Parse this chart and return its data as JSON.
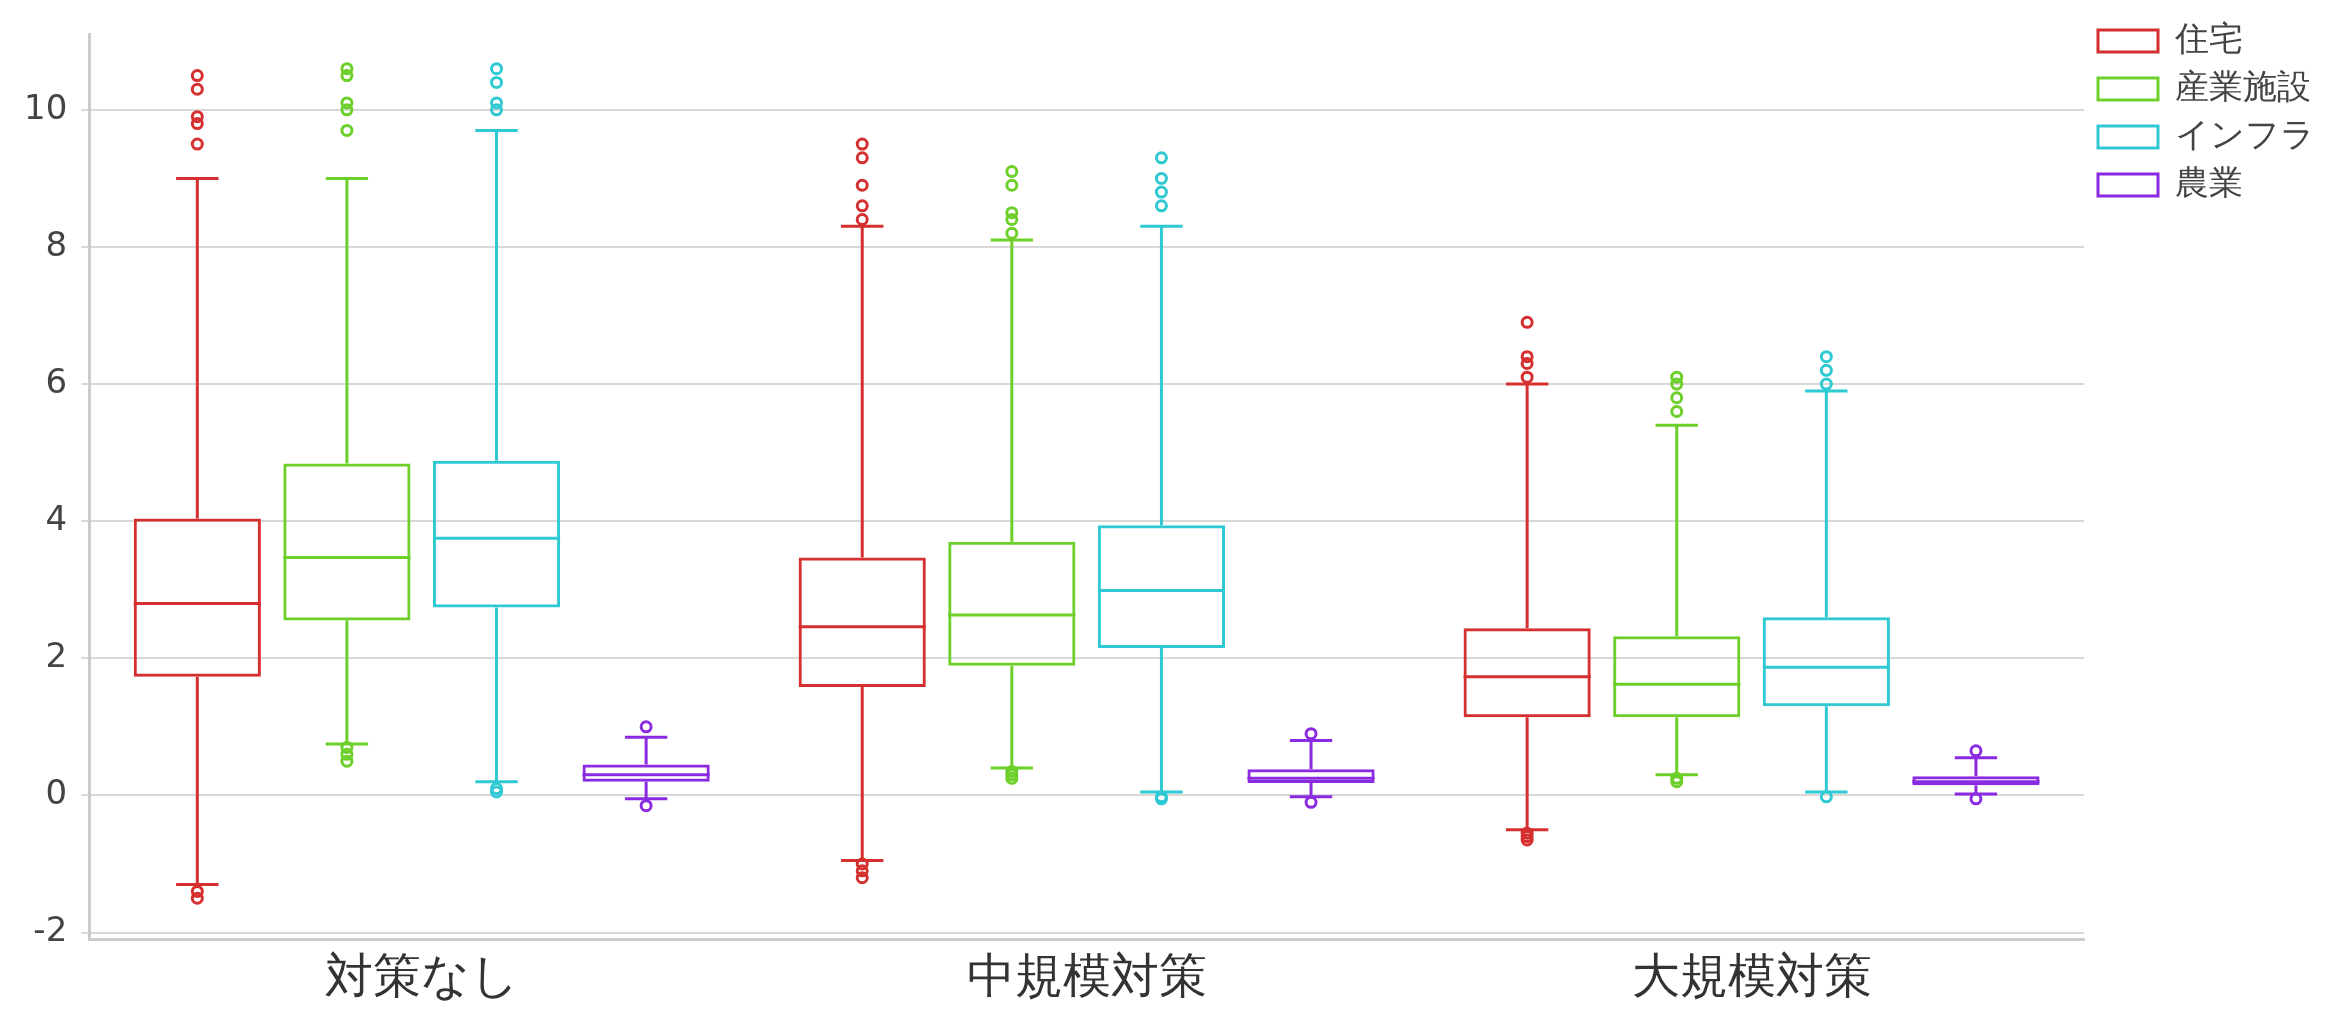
{
  "chart_data": {
    "type": "box",
    "categories": [
      "対策なし",
      "中規模対策",
      "大規模対策"
    ],
    "ylim": [
      -2.1,
      11.1
    ],
    "yticks": [
      -2,
      0,
      2,
      4,
      6,
      8,
      10
    ],
    "grid": "y",
    "legend": "top right",
    "series": [
      {
        "name": "住宅",
        "color": "#d62f2f",
        "boxes": [
          {
            "low": -1.3,
            "q1": 1.73,
            "median": 2.8,
            "q3": 4.04,
            "high": 9.0,
            "outliers": [
              10.5,
              10.3,
              9.9,
              9.8,
              9.5,
              -1.4,
              -1.5
            ]
          },
          {
            "low": -0.95,
            "q1": 1.58,
            "median": 2.46,
            "q3": 3.47,
            "high": 8.3,
            "outliers": [
              9.5,
              9.3,
              8.9,
              8.6,
              8.4,
              -1.0,
              -1.1,
              -1.2
            ]
          },
          {
            "low": -0.5,
            "q1": 1.14,
            "median": 1.73,
            "q3": 2.44,
            "high": 6.0,
            "outliers": [
              6.9,
              6.4,
              6.3,
              6.1,
              -0.55,
              -0.6,
              -0.65
            ]
          }
        ]
      },
      {
        "name": "産業施設",
        "color": "#6ccf2a",
        "boxes": [
          {
            "low": 0.75,
            "q1": 2.55,
            "median": 3.47,
            "q3": 4.84,
            "high": 9.0,
            "outliers": [
              10.6,
              10.5,
              10.1,
              10.0,
              9.7,
              0.7,
              0.6,
              0.5
            ]
          },
          {
            "low": 0.4,
            "q1": 1.89,
            "median": 2.63,
            "q3": 3.7,
            "high": 8.1,
            "outliers": [
              9.1,
              8.9,
              8.5,
              8.4,
              8.2,
              0.35,
              0.3,
              0.25
            ]
          },
          {
            "low": 0.3,
            "q1": 1.14,
            "median": 1.62,
            "q3": 2.32,
            "high": 5.4,
            "outliers": [
              6.1,
              6.0,
              5.8,
              5.6,
              0.25,
              0.2
            ]
          }
        ]
      },
      {
        "name": "インフラ",
        "color": "#2fc9d3",
        "boxes": [
          {
            "low": 0.2,
            "q1": 2.74,
            "median": 3.75,
            "q3": 4.88,
            "high": 9.7,
            "outliers": [
              10.6,
              10.4,
              10.1,
              10.0,
              0.1,
              0.05
            ]
          },
          {
            "low": 0.05,
            "q1": 2.15,
            "median": 2.99,
            "q3": 3.94,
            "high": 8.3,
            "outliers": [
              9.3,
              9.0,
              8.8,
              8.6,
              -0.02,
              -0.05
            ]
          },
          {
            "low": 0.05,
            "q1": 1.3,
            "median": 1.87,
            "q3": 2.6,
            "high": 5.9,
            "outliers": [
              6.4,
              6.2,
              6.0,
              -0.02
            ]
          }
        ]
      },
      {
        "name": "農業",
        "color": "#8a2be2",
        "boxes": [
          {
            "low": -0.05,
            "q1": 0.2,
            "median": 0.3,
            "q3": 0.45,
            "high": 0.85,
            "outliers": [
              1.0,
              -0.15
            ]
          },
          {
            "low": -0.02,
            "q1": 0.18,
            "median": 0.25,
            "q3": 0.38,
            "high": 0.8,
            "outliers": [
              0.9,
              -0.1
            ]
          },
          {
            "low": 0.02,
            "q1": 0.15,
            "median": 0.2,
            "q3": 0.28,
            "high": 0.55,
            "outliers": [
              0.65,
              -0.05
            ]
          }
        ]
      }
    ]
  }
}
